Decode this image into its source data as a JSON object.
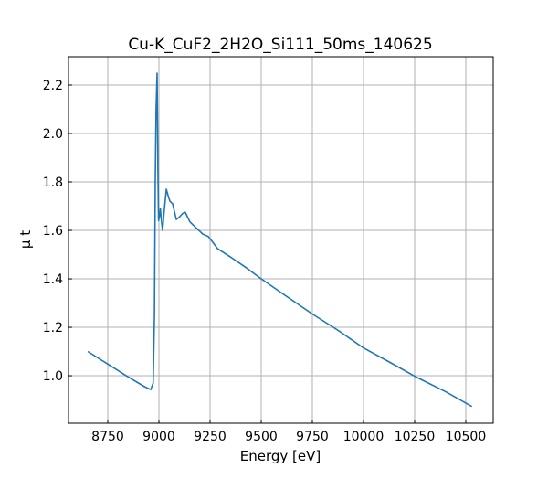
{
  "chart_data": {
    "type": "line",
    "title": "Cu-K_CuF2_2H2O_Si111_50ms_140625",
    "xlabel": "Energy [eV]",
    "ylabel": "μ t",
    "xlim": [
      8558,
      10634
    ],
    "ylim": [
      0.804,
      2.317
    ],
    "xticks": [
      8750,
      9000,
      9250,
      9500,
      9750,
      10000,
      10250,
      10500
    ],
    "yticks": [
      1.0,
      1.2,
      1.4,
      1.6,
      1.8,
      2.0,
      2.2
    ],
    "ytick_labels": [
      "1.0",
      "1.2",
      "1.4",
      "1.6",
      "1.8",
      "2.0",
      "2.2"
    ],
    "grid": true,
    "series": [
      {
        "name": "mu_t",
        "color": "#1f77b4",
        "x": [
          8652,
          8750,
          8850,
          8930,
          8960,
          8972,
          8978,
          8982,
          8986,
          8991,
          8995,
          8998,
          9003,
          9007,
          9012,
          9018,
          9026,
          9036,
          9046,
          9054,
          9067,
          9078,
          9085,
          9100,
          9116,
          9129,
          9140,
          9152,
          9183,
          9214,
          9241,
          9260,
          9286,
          9350,
          9420,
          9500,
          9620,
          9750,
          9880,
          10000,
          10130,
          10250,
          10400,
          10530
        ],
        "y": [
          1.1,
          1.048,
          0.995,
          0.955,
          0.943,
          0.97,
          1.25,
          1.8,
          2.1,
          2.249,
          1.85,
          1.64,
          1.66,
          1.69,
          1.64,
          1.6,
          1.68,
          1.77,
          1.74,
          1.72,
          1.71,
          1.67,
          1.645,
          1.655,
          1.67,
          1.675,
          1.655,
          1.635,
          1.61,
          1.585,
          1.575,
          1.555,
          1.525,
          1.49,
          1.45,
          1.4,
          1.33,
          1.255,
          1.185,
          1.115,
          1.055,
          0.998,
          0.935,
          0.873
        ]
      }
    ]
  }
}
